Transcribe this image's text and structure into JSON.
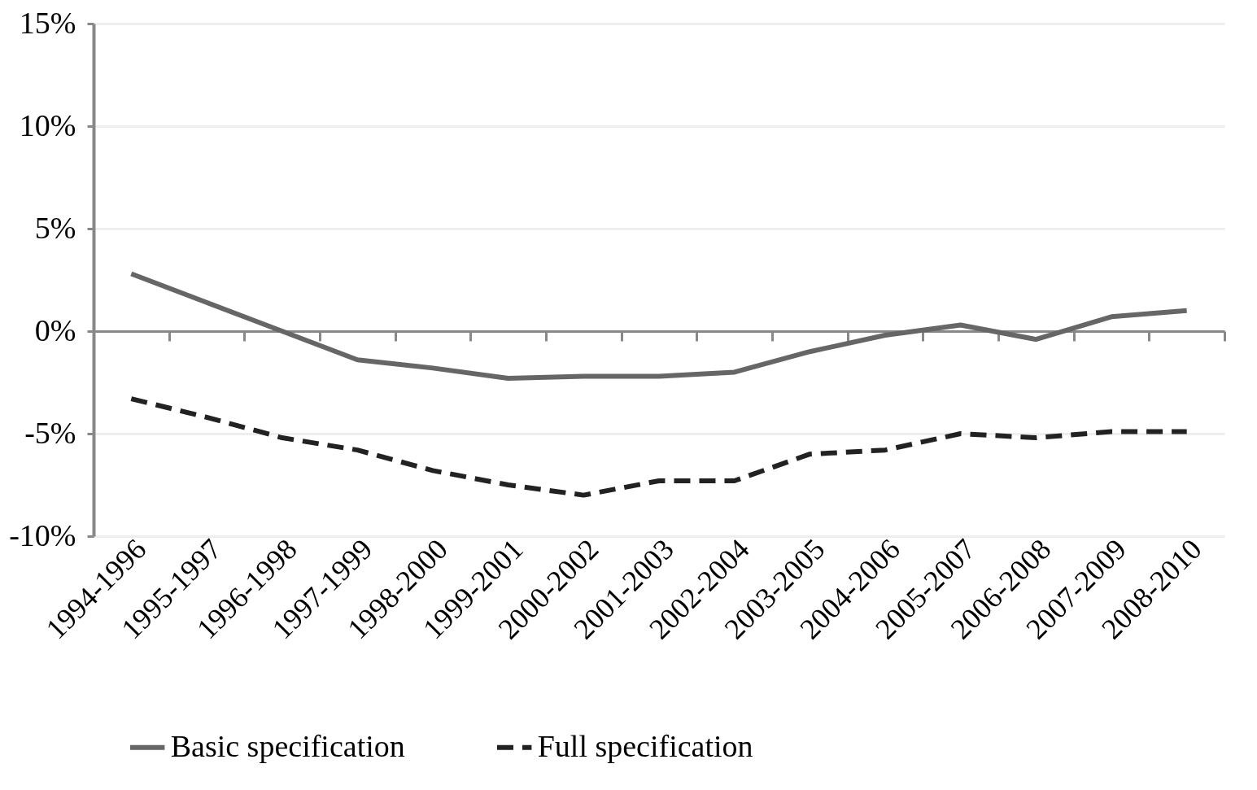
{
  "chart_data": {
    "type": "line",
    "categories": [
      "1994-1996",
      "1995-1997",
      "1996-1998",
      "1997-1999",
      "1998-2000",
      "1999-2001",
      "2000-2002",
      "2001-2003",
      "2002-2004",
      "2003-2005",
      "2004-2006",
      "2005-2007",
      "2006-2008",
      "2007-2009",
      "2008-2010"
    ],
    "series": [
      {
        "name": "Basic specification",
        "color": "#666666",
        "line_style": "solid",
        "values": [
          2.8,
          1.4,
          0.0,
          -1.4,
          -1.8,
          -2.3,
          -2.2,
          -2.2,
          -2.0,
          -1.0,
          -0.2,
          0.3,
          -0.4,
          0.7,
          1.0
        ]
      },
      {
        "name": "Full specification",
        "color": "#222222",
        "line_style": "dashed",
        "values": [
          -3.3,
          -4.2,
          -5.2,
          -5.8,
          -6.8,
          -7.5,
          -8.0,
          -7.3,
          -7.3,
          -6.0,
          -5.8,
          -5.0,
          -5.2,
          -4.9,
          -4.9
        ]
      }
    ],
    "ylim": [
      -10,
      15
    ],
    "yticks": [
      {
        "value": -10,
        "label": "-10%"
      },
      {
        "value": -5,
        "label": "-5%"
      },
      {
        "value": 0,
        "label": "0%"
      },
      {
        "value": 5,
        "label": "5%"
      },
      {
        "value": 10,
        "label": "10%"
      },
      {
        "value": 15,
        "label": "15%"
      }
    ],
    "grid": "y",
    "legend": "bottom",
    "marker": "none"
  }
}
